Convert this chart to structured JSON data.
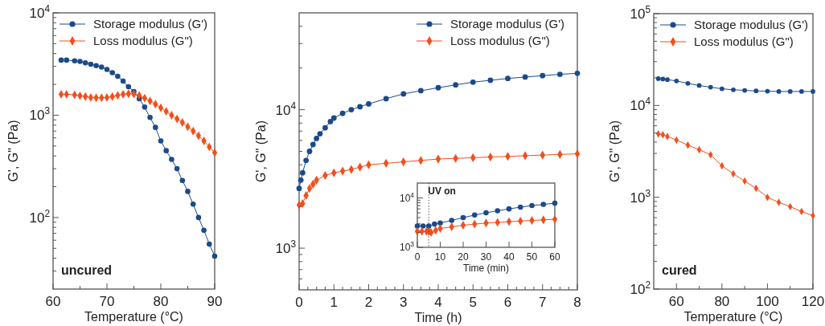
{
  "chart_data": [
    {
      "type": "line",
      "xlabel": "Temperature (°C)",
      "ylabel": "G', G\" (Pa)",
      "log": "y",
      "legend": "top left",
      "xlim": [
        60,
        90
      ],
      "ylim": [
        20,
        10000
      ],
      "xticks": [
        60,
        {
          "value": 65,
          "label": null
        },
        70,
        {
          "value": 75,
          "label": null
        },
        80,
        {
          "value": 85,
          "label": null
        },
        90
      ],
      "yticks": [
        {
          "value": 30,
          "label": null
        },
        {
          "value": 40,
          "label": null
        },
        {
          "value": 50,
          "label": null
        },
        {
          "value": 60,
          "label": null
        },
        {
          "value": 70,
          "label": null
        },
        {
          "value": 80,
          "label": null
        },
        {
          "value": 90,
          "label": null
        },
        {
          "value": 100,
          "label": "10$^{2}$"
        },
        {
          "value": 200,
          "label": null
        },
        {
          "value": 300,
          "label": null
        },
        {
          "value": 400,
          "label": null
        },
        {
          "value": 500,
          "label": null
        },
        {
          "value": 600,
          "label": null
        },
        {
          "value": 700,
          "label": null
        },
        {
          "value": 800,
          "label": null
        },
        {
          "value": 900,
          "label": null
        },
        {
          "value": 1000,
          "label": "10$^{3}$"
        },
        {
          "value": 2000,
          "label": null
        },
        {
          "value": 3000,
          "label": null
        },
        {
          "value": 4000,
          "label": null
        },
        {
          "value": 5000,
          "label": null
        },
        {
          "value": 6000,
          "label": null
        },
        {
          "value": 7000,
          "label": null
        },
        {
          "value": 8000,
          "label": null
        },
        {
          "value": 9000,
          "label": null
        },
        {
          "value": 10000,
          "label": "10$^{4}$"
        }
      ],
      "annotations": [
        "uncured"
      ],
      "series": [
        {
          "name": "Storage modulus (G')",
          "color": "#1b4a8a",
          "marker": "circle",
          "x": [
            61.5,
            62.5,
            64,
            65,
            66,
            67,
            68,
            69,
            70,
            71,
            72,
            73,
            74,
            75,
            76,
            77,
            78,
            79,
            80,
            81,
            82,
            83,
            84,
            85,
            86,
            87,
            88,
            89,
            90
          ],
          "values": [
            3450,
            3450,
            3400,
            3350,
            3250,
            3150,
            3050,
            2950,
            2800,
            2600,
            2400,
            2150,
            1900,
            1700,
            1450,
            1200,
            950,
            760,
            560,
            450,
            370,
            300,
            230,
            180,
            135,
            100,
            75,
            55,
            42
          ]
        },
        {
          "name": "Loss modulus (G\")",
          "color": "#f24f1c",
          "marker": "diamond",
          "x": [
            61.5,
            62.5,
            64,
            65,
            66,
            67,
            68,
            69,
            70,
            71,
            72,
            73,
            74,
            75,
            76,
            77,
            78,
            79,
            80,
            81,
            82,
            83,
            84,
            85,
            86,
            87,
            88,
            89,
            90
          ],
          "values": [
            1600,
            1600,
            1580,
            1550,
            1520,
            1490,
            1480,
            1480,
            1490,
            1520,
            1560,
            1600,
            1620,
            1610,
            1560,
            1470,
            1380,
            1280,
            1180,
            1090,
            1000,
            920,
            850,
            770,
            700,
            630,
            560,
            490,
            430
          ]
        }
      ]
    },
    {
      "type": "line",
      "xlabel": "Time (h)",
      "ylabel": "G', G\" (Pa)",
      "log": "y",
      "legend": "top right",
      "xlim": [
        0,
        8
      ],
      "ylim": [
        500,
        50000
      ],
      "xticks": [
        0,
        {
          "value": 0.25,
          "label": null
        },
        {
          "value": 0.5,
          "label": null
        },
        {
          "value": 0.75,
          "label": null
        },
        1,
        {
          "value": 1.25,
          "label": null
        },
        {
          "value": 1.5,
          "label": null
        },
        {
          "value": 1.75,
          "label": null
        },
        2,
        {
          "value": 2.25,
          "label": null
        },
        {
          "value": 2.5,
          "label": null
        },
        {
          "value": 2.75,
          "label": null
        },
        3,
        {
          "value": 3.25,
          "label": null
        },
        {
          "value": 3.5,
          "label": null
        },
        {
          "value": 3.75,
          "label": null
        },
        4,
        {
          "value": 4.25,
          "label": null
        },
        {
          "value": 4.5,
          "label": null
        },
        {
          "value": 4.75,
          "label": null
        },
        5,
        {
          "value": 5.25,
          "label": null
        },
        {
          "value": 5.5,
          "label": null
        },
        {
          "value": 5.75,
          "label": null
        },
        6,
        {
          "value": 6.25,
          "label": null
        },
        {
          "value": 6.5,
          "label": null
        },
        {
          "value": 6.75,
          "label": null
        },
        7,
        {
          "value": 7.25,
          "label": null
        },
        {
          "value": 7.5,
          "label": null
        },
        {
          "value": 7.75,
          "label": null
        },
        8
      ],
      "yticks": [
        {
          "value": 600,
          "label": null
        },
        {
          "value": 700,
          "label": null
        },
        {
          "value": 800,
          "label": null
        },
        {
          "value": 900,
          "label": null
        },
        {
          "value": 1000,
          "label": "10$^{3}$"
        },
        {
          "value": 2000,
          "label": null
        },
        {
          "value": 3000,
          "label": null
        },
        {
          "value": 4000,
          "label": null
        },
        {
          "value": 5000,
          "label": null
        },
        {
          "value": 6000,
          "label": null
        },
        {
          "value": 7000,
          "label": null
        },
        {
          "value": 8000,
          "label": null
        },
        {
          "value": 9000,
          "label": null
        },
        {
          "value": 10000,
          "label": "10$^{4}$"
        },
        {
          "value": 20000,
          "label": null
        },
        {
          "value": 30000,
          "label": null
        },
        {
          "value": 40000,
          "label": null
        }
      ],
      "series": [
        {
          "name": "Storage modulus (G')",
          "color": "#1b4a8a",
          "marker": "circle",
          "x": [
            0,
            0.05,
            0.1,
            0.2,
            0.3,
            0.4,
            0.5,
            0.6,
            0.75,
            0.9,
            1,
            1.25,
            1.5,
            1.75,
            2,
            2.5,
            3,
            3.5,
            4,
            4.5,
            5,
            5.5,
            6,
            6.5,
            7,
            7.5,
            8
          ],
          "values": [
            2700,
            3100,
            3500,
            4300,
            5000,
            5600,
            6200,
            6700,
            7400,
            8200,
            8700,
            9400,
            10000,
            10500,
            11000,
            12000,
            13000,
            13700,
            14400,
            15100,
            15800,
            16300,
            16800,
            17200,
            17600,
            18000,
            18300
          ]
        },
        {
          "name": "Loss modulus (G\")",
          "color": "#f24f1c",
          "marker": "diamond",
          "x": [
            0,
            0.1,
            0.2,
            0.3,
            0.4,
            0.5,
            0.75,
            1,
            1.25,
            1.5,
            1.75,
            2,
            2.5,
            3,
            3.5,
            4,
            4.5,
            5,
            5.5,
            6,
            6.5,
            7,
            7.5,
            8
          ],
          "values": [
            2050,
            2100,
            2400,
            2700,
            2900,
            3100,
            3350,
            3500,
            3600,
            3700,
            3850,
            4000,
            4100,
            4200,
            4300,
            4400,
            4450,
            4500,
            4550,
            4600,
            4650,
            4700,
            4750,
            4800
          ]
        }
      ]
    },
    {
      "type": "line",
      "xlabel": "Time (min)",
      "log": "y",
      "xlim": [
        0,
        60
      ],
      "ylim": [
        1000,
        20000
      ],
      "xticks": [
        0,
        10,
        20,
        30,
        40,
        50,
        60
      ],
      "yticks": [
        {
          "value": 1000,
          "label": "10$^{3}$"
        },
        {
          "value": 2000,
          "label": null
        },
        {
          "value": 3000,
          "label": null
        },
        {
          "value": 4000,
          "label": null
        },
        {
          "value": 5000,
          "label": null
        },
        {
          "value": 6000,
          "label": null
        },
        {
          "value": 7000,
          "label": null
        },
        {
          "value": 8000,
          "label": null
        },
        {
          "value": 9000,
          "label": null
        },
        {
          "value": 10000,
          "label": "10$^{4}$"
        }
      ],
      "ref_lines": [
        {
          "axis": "x",
          "value": 5,
          "label": "UV on",
          "line_style": "dotted",
          "color": "#333333"
        }
      ],
      "series": [
        {
          "color": "#1b4a8a",
          "marker": "circle",
          "x": [
            0,
            2.5,
            5,
            7.5,
            10,
            15,
            20,
            25,
            30,
            35,
            40,
            45,
            50,
            55,
            60
          ],
          "values": [
            2700,
            2700,
            2700,
            2950,
            3100,
            3500,
            4000,
            4500,
            5000,
            5500,
            6000,
            6500,
            7000,
            7400,
            7800
          ]
        },
        {
          "color": "#f24f1c",
          "marker": "diamond",
          "x": [
            0,
            2,
            4,
            5,
            6,
            8,
            10,
            15,
            20,
            25,
            30,
            35,
            40,
            45,
            50,
            55,
            60
          ],
          "values": [
            2100,
            2100,
            2100,
            2100,
            2000,
            2200,
            2400,
            2600,
            2800,
            2950,
            3100,
            3200,
            3300,
            3400,
            3500,
            3600,
            3700
          ]
        }
      ]
    },
    {
      "type": "line",
      "xlabel": "Temperature (°C)",
      "ylabel": "G', G\" (Pa)",
      "log": "y",
      "legend": "top left",
      "xlim": [
        50,
        120
      ],
      "ylim": [
        100,
        100000
      ],
      "xticks": [
        60,
        {
          "value": 70,
          "label": null
        },
        80,
        {
          "value": 90,
          "label": null
        },
        100,
        {
          "value": 110,
          "label": null
        },
        120
      ],
      "yticks": [
        {
          "value": 100,
          "label": "10$^{2}$"
        },
        {
          "value": 200,
          "label": null
        },
        {
          "value": 300,
          "label": null
        },
        {
          "value": 400,
          "label": null
        },
        {
          "value": 500,
          "label": null
        },
        {
          "value": 600,
          "label": null
        },
        {
          "value": 700,
          "label": null
        },
        {
          "value": 800,
          "label": null
        },
        {
          "value": 900,
          "label": null
        },
        {
          "value": 1000,
          "label": "10$^{3}$"
        },
        {
          "value": 2000,
          "label": null
        },
        {
          "value": 3000,
          "label": null
        },
        {
          "value": 4000,
          "label": null
        },
        {
          "value": 5000,
          "label": null
        },
        {
          "value": 6000,
          "label": null
        },
        {
          "value": 7000,
          "label": null
        },
        {
          "value": 8000,
          "label": null
        },
        {
          "value": 9000,
          "label": null
        },
        {
          "value": 10000,
          "label": "10$^{4}$"
        },
        {
          "value": 20000,
          "label": null
        },
        {
          "value": 30000,
          "label": null
        },
        {
          "value": 40000,
          "label": null
        },
        {
          "value": 50000,
          "label": null
        },
        {
          "value": 60000,
          "label": null
        },
        {
          "value": 70000,
          "label": null
        },
        {
          "value": 80000,
          "label": null
        },
        {
          "value": 90000,
          "label": null
        },
        {
          "value": 100000,
          "label": "10$^{5}$"
        }
      ],
      "annotations": [
        "cured"
      ],
      "series": [
        {
          "name": "Storage modulus (G')",
          "color": "#1b4a8a",
          "marker": "circle",
          "x": [
            52,
            54,
            56,
            60,
            65,
            70,
            75,
            80,
            85,
            90,
            95,
            100,
            105,
            110,
            115,
            120
          ],
          "values": [
            19600,
            19400,
            19100,
            18500,
            17400,
            16500,
            15800,
            15200,
            14800,
            14600,
            14400,
            14300,
            14200,
            14200,
            14200,
            14200
          ]
        },
        {
          "name": "Loss modulus (G\")",
          "color": "#f24f1c",
          "marker": "diamond",
          "x": [
            52,
            54,
            56,
            60,
            65,
            70,
            75,
            80,
            85,
            90,
            95,
            100,
            105,
            110,
            115,
            120
          ],
          "values": [
            4900,
            4800,
            4600,
            4200,
            3700,
            3300,
            2900,
            2200,
            1800,
            1500,
            1250,
            1000,
            880,
            790,
            700,
            630
          ]
        }
      ]
    }
  ]
}
